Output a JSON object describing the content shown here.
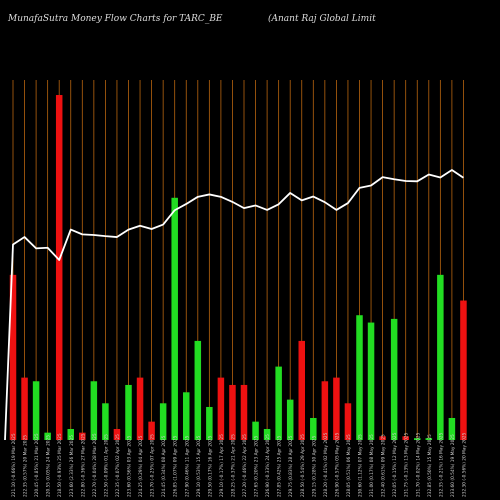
{
  "header": {
    "left_title": "MunafaSutra  Money Flow  Charts for TARC_BE",
    "right_title": "(Anant Raj Global Limit"
  },
  "chart_data": {
    "type": "bar",
    "subtype": "money-flow bars with price line overlay",
    "title": "MunafaSutra  Money Flow  Charts for TARC_BE",
    "colors": {
      "background": "#000000",
      "positive_bar": "#22dd22",
      "negative_bar": "#ee1111",
      "gridline": "#b8650f",
      "price_line": "#ffffff",
      "label_text": "#cfcfcf"
    },
    "grid": true,
    "bar_scale_max": 100,
    "categories": [
      "221.10 (-0.66%) 19 Mar 2025",
      "222.35 (0.57%) 20 Mar 2025",
      "220.45 (-0.85%) 21 Mar 2025",
      "220.55 (0.05%) 24 Mar 2025",
      "218.50 (-0.93%) 25 Mar 2025",
      "223.60 (2.33%) 26 Mar 2025",
      "222.80 (-0.36%) 27 Mar 2025",
      "222.70 (-0.04%) 28 Mar 2025",
      "222.50 (-0.09%) 01 Apr 2025",
      "222.35 (-0.07%) 02 Apr 2025",
      "223.60 (0.56%) 03 Apr 2025",
      "224.25 (0.29%) 04 Apr 2025",
      "223.70 (-0.25%) 07 Apr 2025",
      "224.45 (0.34%) 08 Apr 2025",
      "226.85 (1.07%) 09 Apr 2025",
      "227.90 (0.46%) 11 Apr 2025",
      "229.10 (0.53%) 15 Apr 2025",
      "229.50 (0.17%) 16 Apr 2025",
      "229.10 (-0.17%) 17 Apr 2025",
      "228.25 (-0.37%) 21 Apr 2025",
      "227.20 (-0.46%) 22 Apr 2025",
      "227.65 (0.20%) 23 Apr 2025",
      "226.90 (-0.33%) 24 Apr 2025",
      "227.85 (0.42%) 25 Apr 2025",
      "229.75 (0.83%) 28 Apr 2025",
      "228.50 (-0.54%) 29 Apr 2025",
      "229.15 (0.28%) 30 Apr 2025",
      "228.20 (-0.41%) 02 May 2025",
      "226.90 (-0.57%) 05 May 2025",
      "228.05 (0.51%) 06 May 2025",
      "230.60 (1.12%) 07 May 2025",
      "231.00 (0.17%) 08 May 2025",
      "232.40 (0.61%) 09 May 2025",
      "232.05 (-0.15%) 12 May 2025",
      "231.75 (-0.13%) 13 May 2025",
      "231.70 (-0.02%) 14 May 2025",
      "232.85 (0.50%) 15 May 2025",
      "232.35 (-0.21%) 16 May 2025",
      "233.60 (0.54%) 19 May 2025",
      "232.30 (-0.56%) 20 May 2025"
    ],
    "series": [
      {
        "values": [
          45,
          17,
          16,
          2,
          94,
          3,
          2,
          16,
          10,
          3,
          15,
          17,
          5,
          10,
          66,
          13,
          27,
          9,
          17,
          15,
          15,
          5,
          3,
          20,
          11,
          27,
          6,
          16,
          17,
          10,
          34,
          32,
          1,
          33,
          1,
          0.5,
          0.5,
          45,
          6,
          38
        ]
      },
      {
        "values": [
          1,
          1,
          0,
          0,
          1,
          0,
          1,
          0,
          0,
          1,
          0,
          1,
          1,
          0,
          0,
          0,
          0,
          0,
          1,
          1,
          1,
          0,
          0,
          0,
          0,
          1,
          0,
          1,
          1,
          1,
          0,
          0,
          1,
          0,
          1,
          0,
          0,
          0,
          0,
          1
        ]
      },
      {
        "values": [
          221.1,
          222.35,
          220.45,
          220.55,
          218.5,
          223.6,
          222.8,
          222.7,
          222.5,
          222.35,
          223.6,
          224.25,
          223.7,
          224.45,
          226.85,
          227.9,
          229.1,
          229.5,
          229.1,
          228.25,
          227.2,
          227.65,
          226.9,
          227.85,
          229.75,
          228.5,
          229.15,
          228.2,
          226.9,
          228.05,
          230.6,
          231.0,
          232.4,
          232.05,
          231.75,
          231.7,
          232.85,
          232.35,
          233.6,
          232.3
        ]
      }
    ]
  }
}
